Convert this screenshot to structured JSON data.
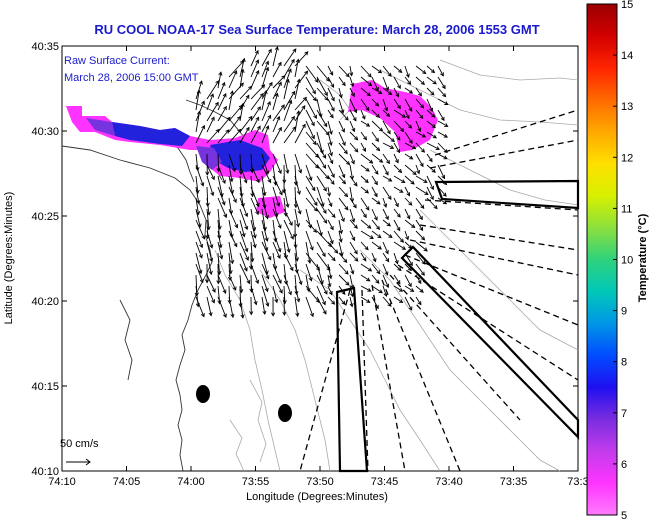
{
  "title": "RU COOL  NOAA-17  Sea Surface Temperature:  March 28, 2006 1553 GMT",
  "annotation": {
    "line1": "Raw Surface Current:",
    "line2": "March 28, 2006 15:00 GMT"
  },
  "axes": {
    "xlabel": "Longitude (Degrees:Minutes)",
    "ylabel": "Latitude (Degrees:Minutes)",
    "x_ticks": [
      "74:10",
      "74:05",
      "74:00",
      "73:55",
      "73:50",
      "73:45",
      "73:40",
      "73:35",
      "73:3"
    ],
    "y_ticks": [
      "40:35",
      "40:30",
      "40:25",
      "40:20",
      "40:15",
      "40:10"
    ]
  },
  "scale_label": "50 cm/s",
  "colorbar": {
    "label": "Temperature (°C)",
    "ticks": [
      "15",
      "14",
      "13",
      "12",
      "11",
      "10",
      "9",
      "8",
      "7",
      "6",
      "5"
    ],
    "colors": [
      "#9b0000",
      "#d20000",
      "#ff2400",
      "#ff6a00",
      "#ffa800",
      "#ffe000",
      "#d8f000",
      "#8ce03c",
      "#2fd27c",
      "#00c8b8",
      "#0096e6",
      "#004cff",
      "#1f10f0",
      "#7a2ce0",
      "#c23cec",
      "#ff34ff",
      "#ff7cff"
    ]
  },
  "sst_patches_color": [
    "#ff33ff",
    "#2222dd",
    "#7733dd"
  ],
  "icons": [
    "scale-arrow-icon",
    "marker-dot-icon"
  ]
}
